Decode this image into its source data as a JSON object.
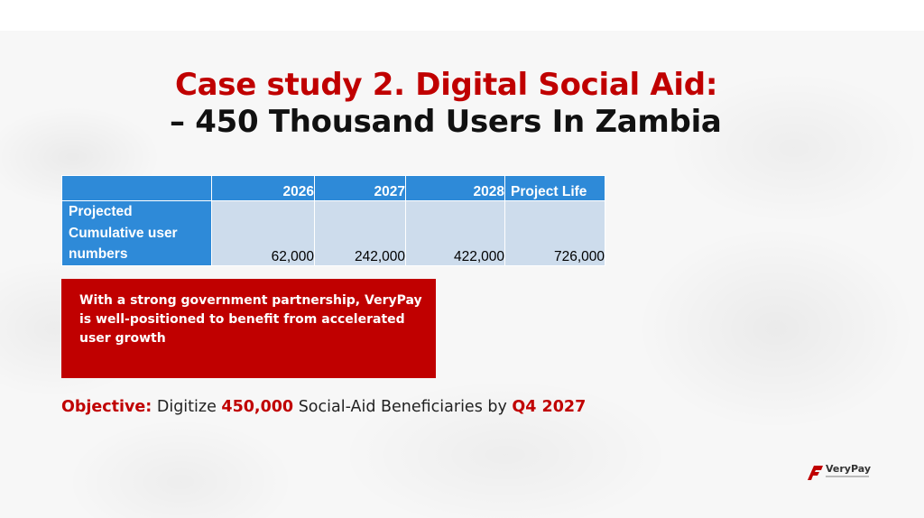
{
  "title": {
    "line1": "Case study 2. Digital Social Aid:",
    "line2": "– 450 Thousand Users In Zambia"
  },
  "table": {
    "headers": [
      "",
      "2026",
      "2027",
      "2028",
      "Project Life"
    ],
    "row_label": "Projected Cumulative user numbers",
    "values": [
      "62,000",
      "242,000",
      "422,000",
      "726,000"
    ]
  },
  "callout": {
    "text": "With a strong government partnership, VeryPay is well-positioned to benefit from accelerated user growth"
  },
  "objective": {
    "label": "Objective:",
    "text1": " Digitize ",
    "count": "450,000",
    "text2": " Social-Aid Beneficiaries by ",
    "deadline": "Q4 2027"
  },
  "logo": {
    "name": "VeryPay",
    "icon": "verypay-logo-icon"
  },
  "colors": {
    "accent_red": "#c00000",
    "header_blue": "#2e8ad8",
    "cell_blue": "#cddcec"
  }
}
